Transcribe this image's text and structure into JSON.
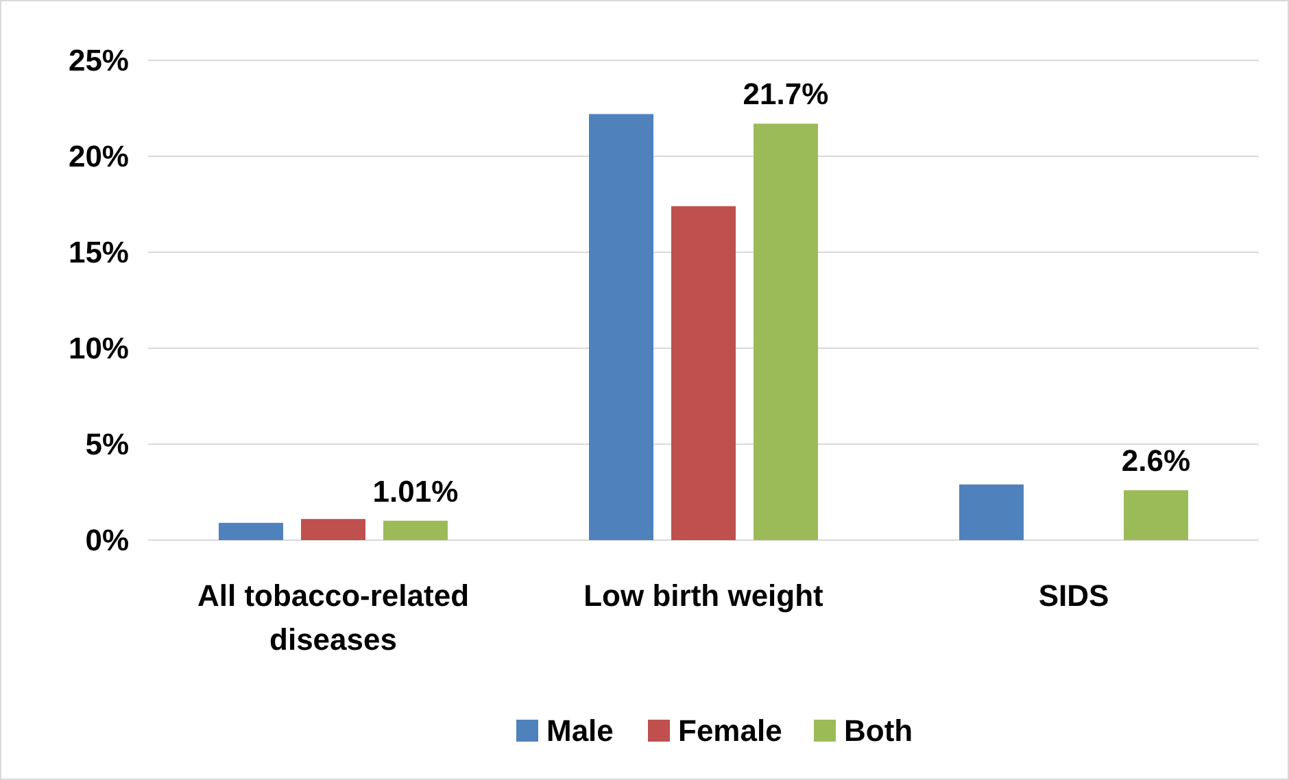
{
  "chart_data": {
    "type": "bar",
    "categories": [
      "All tobacco-related diseases",
      "Low birth weight",
      "SIDS"
    ],
    "series": [
      {
        "name": "Male",
        "color": "#4f81bd",
        "values": [
          0.9,
          22.2,
          2.9
        ]
      },
      {
        "name": "Female",
        "color": "#c0504d",
        "values": [
          1.1,
          17.4,
          null
        ]
      },
      {
        "name": "Both",
        "color": "#9bbb59",
        "values": [
          1.01,
          21.7,
          2.6
        ],
        "value_labels": [
          "1.01%",
          "21.7%",
          "2.6%"
        ]
      }
    ],
    "ylim": [
      0,
      25
    ],
    "yticks": [
      {
        "value": 0,
        "label": "0%"
      },
      {
        "value": 5,
        "label": "5%"
      },
      {
        "value": 10,
        "label": "10%"
      },
      {
        "value": 15,
        "label": "15%"
      },
      {
        "value": 20,
        "label": "20%"
      },
      {
        "value": 25,
        "label": "25%"
      }
    ],
    "grid": "y",
    "legend": "bottom"
  }
}
